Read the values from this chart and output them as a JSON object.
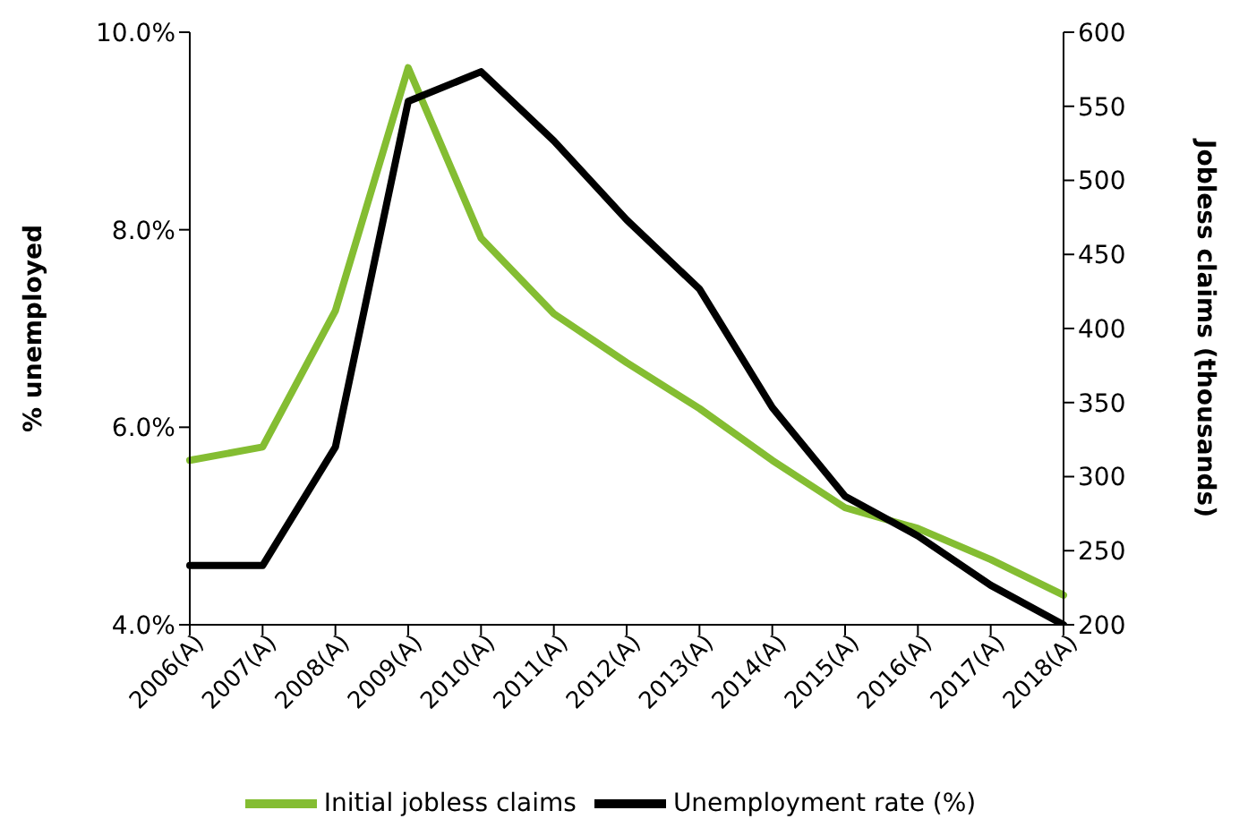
{
  "chart_data": {
    "type": "line",
    "categories": [
      "2006(A)",
      "2007(A)",
      "2008(A)",
      "2009(A)",
      "2010(A)",
      "2011(A)",
      "2012(A)",
      "2013(A)",
      "2014(A)",
      "2015(A)",
      "2016(A)",
      "2017(A)",
      "2018(A)"
    ],
    "ylabel": "% unemployed",
    "y2label": "Jobless claims (thousands)",
    "ylim": [
      4,
      10
    ],
    "yticks": [
      {
        "value": 4,
        "label": "4.0%"
      },
      {
        "value": 6,
        "label": "6.0%"
      },
      {
        "value": 8,
        "label": "8.0%"
      },
      {
        "value": 10,
        "label": "10.0%"
      }
    ],
    "y2lim": [
      200,
      600
    ],
    "y2ticks": [
      200,
      250,
      300,
      350,
      400,
      450,
      500,
      550,
      600
    ],
    "legend": "bottom",
    "grid": false,
    "marker": "none",
    "line_style": "solid",
    "series": [
      {
        "name": "Initial jobless claims",
        "color": "#84bd32",
        "axis": "y2",
        "values": [
          311,
          320,
          412,
          576,
          461,
          410,
          377,
          346,
          311,
          279,
          265,
          244,
          220
        ]
      },
      {
        "name": "Unemployment rate (%)",
        "color": "#000000",
        "values": [
          4.6,
          4.6,
          5.8,
          9.3,
          9.6,
          8.9,
          8.1,
          7.4,
          6.2,
          5.3,
          4.9,
          4.4,
          4.0
        ]
      }
    ]
  }
}
